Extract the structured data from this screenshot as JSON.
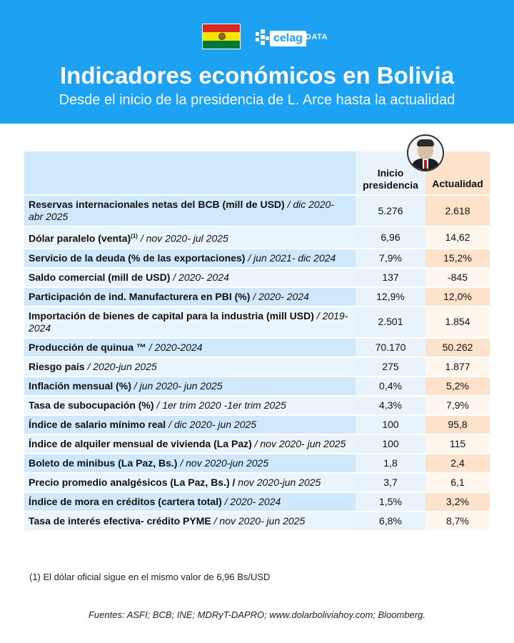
{
  "header": {
    "flag_name": "bolivia-flag-icon",
    "brand": "celag",
    "brand_suffix": "DATA",
    "title": "Indicadores económicos en Bolivia",
    "subtitle": "Desde el inicio de la presidencia de L. Arce hasta la actualidad",
    "colors": {
      "header_bg": "#1da1f2",
      "label_bg": "#cfe8fb",
      "inicio_bg": "#e8f3fc",
      "actual_bg": "#fde3cb"
    }
  },
  "table": {
    "col_inicio": "Inicio presidencia",
    "col_actual": "Actualidad",
    "rows": [
      {
        "label": "Reservas internacionales netas del BCB (mill de USD)",
        "sup": "",
        "period": " / dic 2020- abr 2025",
        "inicio": "5.276",
        "actual": "2.618"
      },
      {
        "label": "Dólar paralelo (venta)",
        "sup": "(1)",
        "period": " / nov 2020- jul 2025",
        "inicio": "6,96",
        "actual": "14,62"
      },
      {
        "label": "Servicio de la deuda (% de las exportaciones)",
        "sup": "",
        "period": " / jun 2021- dic 2024",
        "inicio": "7,9%",
        "actual": "15,2%"
      },
      {
        "label": "Saldo comercial (mill de USD)",
        "sup": "",
        "period": " / 2020- 2024",
        "inicio": "137",
        "actual": "-845"
      },
      {
        "label": "Participación de ind. Manufacturera en PBI (%)",
        "sup": "",
        "period": " / 2020- 2024",
        "inicio": "12,9%",
        "actual": "12,0%"
      },
      {
        "label": "Importación de bienes de capital para la industria (mill USD)",
        "sup": "",
        "period": " / 2019-2024",
        "inicio": "2.501",
        "actual": "1.854"
      },
      {
        "label": "Producción de quinua ™",
        "sup": "",
        "period": " / 2020-2024",
        "inicio": "70.170",
        "actual": "50.262"
      },
      {
        "label": "Riesgo país",
        "sup": "",
        "period": " / 2020-jun 2025",
        "inicio": "275",
        "actual": "1.877"
      },
      {
        "label": "Inflación mensual (%)",
        "sup": "",
        "period": " / jun 2020- jun 2025",
        "inicio": "0,4%",
        "actual": "5,2%"
      },
      {
        "label": "Tasa de subocupación (%)",
        "sup": "",
        "period": " / 1er trim 2020 -1er trim 2025",
        "inicio": "4,3%",
        "actual": "7,9%"
      },
      {
        "label": "Índice de salario mínimo real",
        "sup": "",
        "period": " / dic 2020- jun 2025",
        "inicio": "100",
        "actual": "95,8"
      },
      {
        "label": "Índice de alquiler mensual de vivienda (La Paz)",
        "sup": "",
        "period": " / nov 2020- jun 2025",
        "inicio": "100",
        "actual": "115"
      },
      {
        "label": "Boleto de minibus (La Paz, Bs.)",
        "sup": "",
        "period": " / nov 2020-jun 2025",
        "inicio": "1,8",
        "actual": "2,4"
      },
      {
        "label": "Precio promedio analgésicos (La Paz, Bs.) /",
        "sup": "",
        "period": " nov 2020-jun 2025",
        "inicio": "3,7",
        "actual": "6,1"
      },
      {
        "label": "Índice de mora en créditos (cartera total)",
        "sup": "",
        "period": " / 2020- 2024",
        "inicio": "1,5%",
        "actual": "3,2%"
      },
      {
        "label": "Tasa de interés efectiva- crédito PYME",
        "sup": "",
        "period": " / nov 2020- jun 2025",
        "inicio": "6,8%",
        "actual": "8,7%"
      }
    ]
  },
  "footnote": "(1) El dólar oficial sigue en el mismo valor de 6,96 Bs/USD",
  "sources": "Fuentes: ASFI; BCB; INE; MDRyT-DAPRO; www.dolarboliviahoy.com; Bloomberg."
}
